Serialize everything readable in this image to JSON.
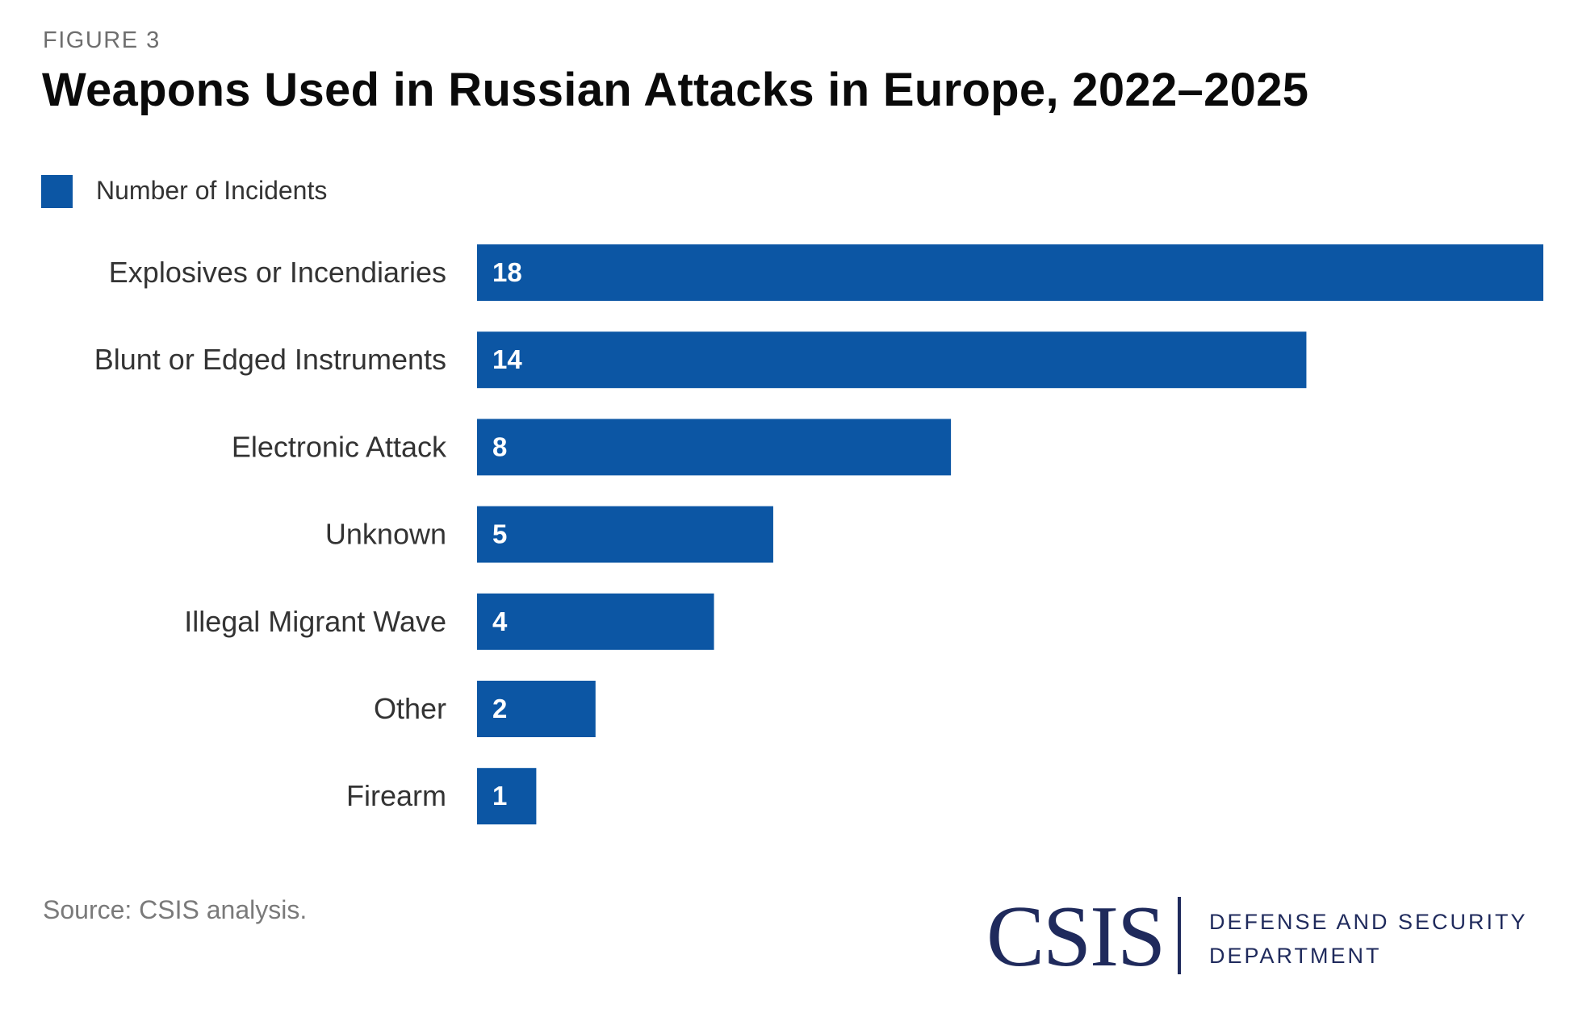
{
  "header": {
    "figure_label": "FIGURE 3",
    "title": "Weapons Used in Russian Attacks in Europe, 2022–2025"
  },
  "legend": {
    "label": "Number of Incidents",
    "color": "#0c56a4"
  },
  "footer": {
    "source": "Source: CSIS analysis.",
    "logo_text": "CSIS",
    "department_line1": "DEFENSE AND SECURITY",
    "department_line2": "DEPARTMENT",
    "logo_color": "#1f2a5c"
  },
  "chart_data": {
    "type": "bar",
    "orientation": "horizontal",
    "title": "Weapons Used in Russian Attacks in Europe, 2022–2025",
    "categories": [
      "Explosives or Incendiaries",
      "Blunt or Edged Instruments",
      "Electronic Attack",
      "Unknown",
      "Illegal Migrant Wave",
      "Other",
      "Firearm"
    ],
    "values": [
      18,
      14,
      8,
      5,
      4,
      2,
      1
    ],
    "series": [
      {
        "name": "Number of Incidents",
        "values": [
          18,
          14,
          8,
          5,
          4,
          2,
          1
        ]
      }
    ],
    "xlabel": "",
    "ylabel": "",
    "xlim": [
      0,
      18
    ],
    "grid": false,
    "legend_position": "top-left"
  }
}
